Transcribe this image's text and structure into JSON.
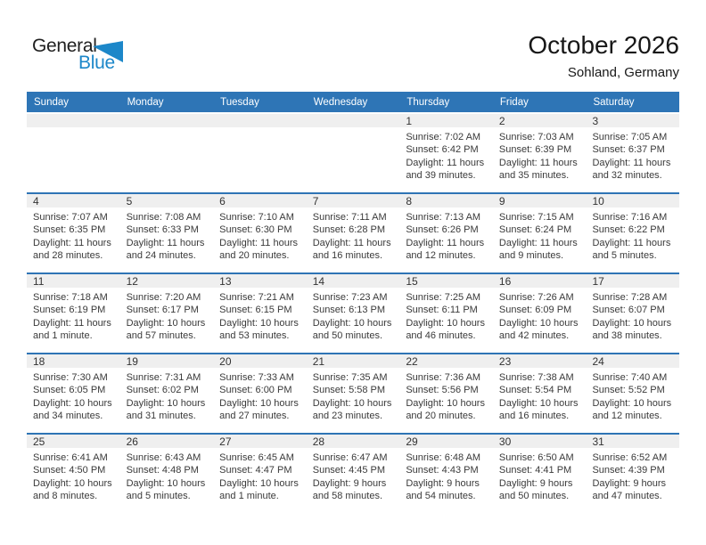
{
  "logo": {
    "general": "General",
    "blue": "Blue",
    "triangle_color": "#1c87c9"
  },
  "header": {
    "title": "October 2026",
    "subtitle": "Sohland, Germany"
  },
  "colors": {
    "weekday_header_bg": "#2e75b6",
    "week_separator": "#2e74b5",
    "day_band_bg": "#efefef",
    "logo_blue": "#1c87c9"
  },
  "weekdays": [
    "Sunday",
    "Monday",
    "Tuesday",
    "Wednesday",
    "Thursday",
    "Friday",
    "Saturday"
  ],
  "weeks": [
    [
      null,
      null,
      null,
      null,
      {
        "n": "1",
        "lines": [
          "Sunrise: 7:02 AM",
          "Sunset: 6:42 PM",
          "Daylight: 11 hours",
          "and 39 minutes."
        ]
      },
      {
        "n": "2",
        "lines": [
          "Sunrise: 7:03 AM",
          "Sunset: 6:39 PM",
          "Daylight: 11 hours",
          "and 35 minutes."
        ]
      },
      {
        "n": "3",
        "lines": [
          "Sunrise: 7:05 AM",
          "Sunset: 6:37 PM",
          "Daylight: 11 hours",
          "and 32 minutes."
        ]
      }
    ],
    [
      {
        "n": "4",
        "lines": [
          "Sunrise: 7:07 AM",
          "Sunset: 6:35 PM",
          "Daylight: 11 hours",
          "and 28 minutes."
        ]
      },
      {
        "n": "5",
        "lines": [
          "Sunrise: 7:08 AM",
          "Sunset: 6:33 PM",
          "Daylight: 11 hours",
          "and 24 minutes."
        ]
      },
      {
        "n": "6",
        "lines": [
          "Sunrise: 7:10 AM",
          "Sunset: 6:30 PM",
          "Daylight: 11 hours",
          "and 20 minutes."
        ]
      },
      {
        "n": "7",
        "lines": [
          "Sunrise: 7:11 AM",
          "Sunset: 6:28 PM",
          "Daylight: 11 hours",
          "and 16 minutes."
        ]
      },
      {
        "n": "8",
        "lines": [
          "Sunrise: 7:13 AM",
          "Sunset: 6:26 PM",
          "Daylight: 11 hours",
          "and 12 minutes."
        ]
      },
      {
        "n": "9",
        "lines": [
          "Sunrise: 7:15 AM",
          "Sunset: 6:24 PM",
          "Daylight: 11 hours",
          "and 9 minutes."
        ]
      },
      {
        "n": "10",
        "lines": [
          "Sunrise: 7:16 AM",
          "Sunset: 6:22 PM",
          "Daylight: 11 hours",
          "and 5 minutes."
        ]
      }
    ],
    [
      {
        "n": "11",
        "lines": [
          "Sunrise: 7:18 AM",
          "Sunset: 6:19 PM",
          "Daylight: 11 hours",
          "and 1 minute."
        ]
      },
      {
        "n": "12",
        "lines": [
          "Sunrise: 7:20 AM",
          "Sunset: 6:17 PM",
          "Daylight: 10 hours",
          "and 57 minutes."
        ]
      },
      {
        "n": "13",
        "lines": [
          "Sunrise: 7:21 AM",
          "Sunset: 6:15 PM",
          "Daylight: 10 hours",
          "and 53 minutes."
        ]
      },
      {
        "n": "14",
        "lines": [
          "Sunrise: 7:23 AM",
          "Sunset: 6:13 PM",
          "Daylight: 10 hours",
          "and 50 minutes."
        ]
      },
      {
        "n": "15",
        "lines": [
          "Sunrise: 7:25 AM",
          "Sunset: 6:11 PM",
          "Daylight: 10 hours",
          "and 46 minutes."
        ]
      },
      {
        "n": "16",
        "lines": [
          "Sunrise: 7:26 AM",
          "Sunset: 6:09 PM",
          "Daylight: 10 hours",
          "and 42 minutes."
        ]
      },
      {
        "n": "17",
        "lines": [
          "Sunrise: 7:28 AM",
          "Sunset: 6:07 PM",
          "Daylight: 10 hours",
          "and 38 minutes."
        ]
      }
    ],
    [
      {
        "n": "18",
        "lines": [
          "Sunrise: 7:30 AM",
          "Sunset: 6:05 PM",
          "Daylight: 10 hours",
          "and 34 minutes."
        ]
      },
      {
        "n": "19",
        "lines": [
          "Sunrise: 7:31 AM",
          "Sunset: 6:02 PM",
          "Daylight: 10 hours",
          "and 31 minutes."
        ]
      },
      {
        "n": "20",
        "lines": [
          "Sunrise: 7:33 AM",
          "Sunset: 6:00 PM",
          "Daylight: 10 hours",
          "and 27 minutes."
        ]
      },
      {
        "n": "21",
        "lines": [
          "Sunrise: 7:35 AM",
          "Sunset: 5:58 PM",
          "Daylight: 10 hours",
          "and 23 minutes."
        ]
      },
      {
        "n": "22",
        "lines": [
          "Sunrise: 7:36 AM",
          "Sunset: 5:56 PM",
          "Daylight: 10 hours",
          "and 20 minutes."
        ]
      },
      {
        "n": "23",
        "lines": [
          "Sunrise: 7:38 AM",
          "Sunset: 5:54 PM",
          "Daylight: 10 hours",
          "and 16 minutes."
        ]
      },
      {
        "n": "24",
        "lines": [
          "Sunrise: 7:40 AM",
          "Sunset: 5:52 PM",
          "Daylight: 10 hours",
          "and 12 minutes."
        ]
      }
    ],
    [
      {
        "n": "25",
        "lines": [
          "Sunrise: 6:41 AM",
          "Sunset: 4:50 PM",
          "Daylight: 10 hours",
          "and 8 minutes."
        ]
      },
      {
        "n": "26",
        "lines": [
          "Sunrise: 6:43 AM",
          "Sunset: 4:48 PM",
          "Daylight: 10 hours",
          "and 5 minutes."
        ]
      },
      {
        "n": "27",
        "lines": [
          "Sunrise: 6:45 AM",
          "Sunset: 4:47 PM",
          "Daylight: 10 hours",
          "and 1 minute."
        ]
      },
      {
        "n": "28",
        "lines": [
          "Sunrise: 6:47 AM",
          "Sunset: 4:45 PM",
          "Daylight: 9 hours",
          "and 58 minutes."
        ]
      },
      {
        "n": "29",
        "lines": [
          "Sunrise: 6:48 AM",
          "Sunset: 4:43 PM",
          "Daylight: 9 hours",
          "and 54 minutes."
        ]
      },
      {
        "n": "30",
        "lines": [
          "Sunrise: 6:50 AM",
          "Sunset: 4:41 PM",
          "Daylight: 9 hours",
          "and 50 minutes."
        ]
      },
      {
        "n": "31",
        "lines": [
          "Sunrise: 6:52 AM",
          "Sunset: 4:39 PM",
          "Daylight: 9 hours",
          "and 47 minutes."
        ]
      }
    ]
  ]
}
